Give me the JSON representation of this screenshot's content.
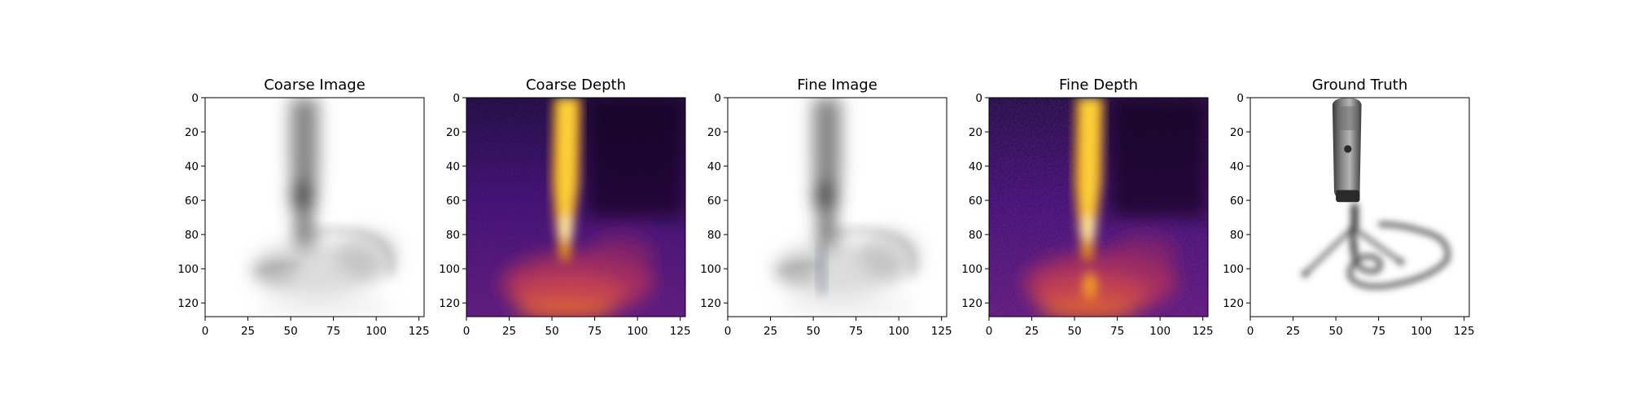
{
  "chart_data": {
    "type": "image_grid",
    "grid": false,
    "panels": [
      {
        "title": "Coarse Image",
        "content": "rgb render, microphone silhouette, grayscale on white",
        "colormap": "gray",
        "xlim": [
          0,
          128
        ],
        "ylim": [
          128,
          0
        ],
        "xticks": [
          "0",
          "25",
          "50",
          "75",
          "100",
          "125"
        ],
        "yticks": [
          "0",
          "20",
          "40",
          "60",
          "80",
          "100",
          "120"
        ]
      },
      {
        "title": "Coarse Depth",
        "content": "depth map",
        "colormap": "inferno",
        "xlim": [
          0,
          128
        ],
        "ylim": [
          128,
          0
        ],
        "xticks": [
          "0",
          "25",
          "50",
          "75",
          "100",
          "125"
        ],
        "yticks": [
          "0",
          "20",
          "40",
          "60",
          "80",
          "100",
          "120"
        ]
      },
      {
        "title": "Fine Image",
        "content": "rgb render, microphone silhouette, grayscale on white",
        "colormap": "gray",
        "xlim": [
          0,
          128
        ],
        "ylim": [
          128,
          0
        ],
        "xticks": [
          "0",
          "25",
          "50",
          "75",
          "100",
          "125"
        ],
        "yticks": [
          "0",
          "20",
          "40",
          "60",
          "80",
          "100",
          "120"
        ]
      },
      {
        "title": "Fine Depth",
        "content": "depth map",
        "colormap": "inferno",
        "xlim": [
          0,
          128
        ],
        "ylim": [
          128,
          0
        ],
        "xticks": [
          "0",
          "25",
          "50",
          "75",
          "100",
          "125"
        ],
        "yticks": [
          "0",
          "20",
          "40",
          "60",
          "80",
          "100",
          "120"
        ]
      },
      {
        "title": "Ground Truth",
        "content": "microphone on tripod stand with coiled cable",
        "colormap": "rgb",
        "xlim": [
          0,
          128
        ],
        "ylim": [
          128,
          0
        ],
        "xticks": [
          "0",
          "25",
          "50",
          "75",
          "100",
          "125"
        ],
        "yticks": [
          "0",
          "20",
          "40",
          "60",
          "80",
          "100",
          "120"
        ]
      }
    ]
  }
}
